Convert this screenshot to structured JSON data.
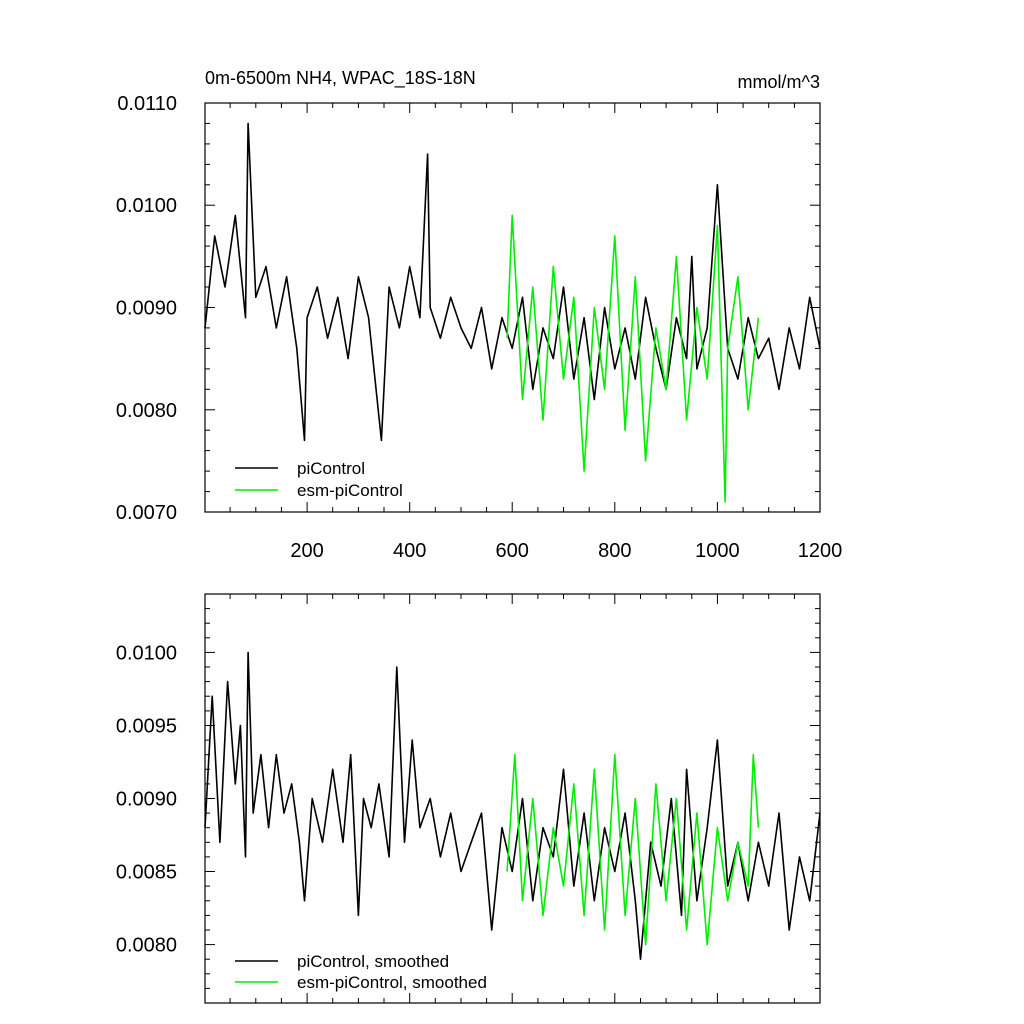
{
  "chart_data": [
    {
      "type": "line",
      "title": "0m-6500m NH4, WPAC_18S-18N",
      "units": "mmol/m^3",
      "xlim": [
        1,
        1200
      ],
      "ylim": [
        0.007,
        0.011
      ],
      "xticks": [
        200,
        400,
        600,
        800,
        1000,
        1200
      ],
      "xtick_labels": [
        "200",
        "400",
        "600",
        "800",
        "1000",
        "1200"
      ],
      "yticks": [
        0.007,
        0.008,
        0.009,
        0.01,
        0.011
      ],
      "ytick_labels": [
        "0.0070",
        "0.0080",
        "0.0090",
        "0.0100",
        "0.0110"
      ],
      "legend_position": "bottom-left",
      "series": [
        {
          "name": "piControl",
          "color": "#000000",
          "x": [
            1,
            20,
            40,
            60,
            80,
            85,
            100,
            120,
            140,
            160,
            180,
            195,
            200,
            220,
            240,
            260,
            280,
            300,
            320,
            345,
            360,
            380,
            400,
            420,
            435,
            440,
            460,
            480,
            500,
            520,
            540,
            560,
            580,
            600,
            620,
            640,
            660,
            680,
            700,
            720,
            740,
            760,
            780,
            800,
            820,
            840,
            860,
            880,
            900,
            920,
            940,
            950,
            960,
            980,
            1000,
            1020,
            1040,
            1060,
            1080,
            1100,
            1120,
            1140,
            1160,
            1180,
            1200
          ],
          "y": [
            0.0088,
            0.0097,
            0.0092,
            0.0099,
            0.0089,
            0.0108,
            0.0091,
            0.0094,
            0.0088,
            0.0093,
            0.0086,
            0.0077,
            0.0089,
            0.0092,
            0.0087,
            0.0091,
            0.0085,
            0.0093,
            0.0089,
            0.0077,
            0.0092,
            0.0088,
            0.0094,
            0.0089,
            0.0105,
            0.009,
            0.0087,
            0.0091,
            0.0088,
            0.0086,
            0.009,
            0.0084,
            0.0089,
            0.0086,
            0.0091,
            0.0082,
            0.0088,
            0.0085,
            0.0092,
            0.0083,
            0.0089,
            0.0081,
            0.009,
            0.0084,
            0.0088,
            0.0083,
            0.0091,
            0.0086,
            0.0082,
            0.0089,
            0.0085,
            0.0095,
            0.0084,
            0.0088,
            0.0102,
            0.0086,
            0.0083,
            0.0089,
            0.0085,
            0.0087,
            0.0082,
            0.0088,
            0.0084,
            0.0091,
            0.0086
          ]
        },
        {
          "name": "esm-piControl",
          "color": "#00ee00",
          "x": [
            590,
            600,
            620,
            640,
            660,
            680,
            700,
            720,
            740,
            760,
            780,
            800,
            820,
            840,
            860,
            880,
            900,
            920,
            940,
            960,
            980,
            1000,
            1015,
            1020,
            1040,
            1060,
            1080
          ],
          "y": [
            0.0087,
            0.0099,
            0.0081,
            0.0092,
            0.0079,
            0.0094,
            0.0083,
            0.0091,
            0.0074,
            0.009,
            0.0082,
            0.0097,
            0.0078,
            0.0093,
            0.0075,
            0.0088,
            0.0082,
            0.0095,
            0.0079,
            0.009,
            0.0083,
            0.0098,
            0.0071,
            0.0086,
            0.0093,
            0.008,
            0.0089
          ]
        }
      ]
    },
    {
      "type": "line",
      "xlim": [
        1,
        1200
      ],
      "ylim": [
        0.0076,
        0.0104
      ],
      "xticks": [
        200,
        400,
        600,
        800,
        1000,
        1200
      ],
      "yticks": [
        0.008,
        0.0085,
        0.009,
        0.0095,
        0.01
      ],
      "ytick_labels": [
        "0.0080",
        "0.0085",
        "0.0090",
        "0.0095",
        "0.0100"
      ],
      "legend_position": "bottom-left",
      "series": [
        {
          "name": "piControl, smoothed",
          "color": "#000000",
          "x": [
            1,
            15,
            30,
            45,
            60,
            70,
            80,
            85,
            95,
            110,
            125,
            140,
            155,
            170,
            185,
            195,
            210,
            230,
            250,
            270,
            285,
            300,
            310,
            325,
            340,
            360,
            375,
            390,
            405,
            420,
            440,
            460,
            480,
            500,
            520,
            540,
            560,
            580,
            600,
            620,
            640,
            660,
            680,
            700,
            720,
            740,
            760,
            780,
            800,
            820,
            840,
            850,
            870,
            890,
            910,
            930,
            940,
            960,
            980,
            1000,
            1020,
            1040,
            1060,
            1080,
            1100,
            1120,
            1140,
            1160,
            1180,
            1200
          ],
          "y": [
            0.0088,
            0.0097,
            0.0087,
            0.0098,
            0.0091,
            0.0095,
            0.0086,
            0.01,
            0.0089,
            0.0093,
            0.0088,
            0.0093,
            0.0089,
            0.0091,
            0.0087,
            0.0083,
            0.009,
            0.0087,
            0.0092,
            0.0087,
            0.0093,
            0.0082,
            0.009,
            0.0088,
            0.0091,
            0.0086,
            0.0099,
            0.0087,
            0.0094,
            0.0088,
            0.009,
            0.0086,
            0.0089,
            0.0085,
            0.0087,
            0.0089,
            0.0081,
            0.0088,
            0.0085,
            0.009,
            0.0083,
            0.0088,
            0.0086,
            0.0092,
            0.0084,
            0.0089,
            0.0083,
            0.0088,
            0.0085,
            0.0089,
            0.0083,
            0.0079,
            0.0087,
            0.0084,
            0.009,
            0.0082,
            0.0092,
            0.0083,
            0.0088,
            0.0094,
            0.0084,
            0.0087,
            0.0083,
            0.0087,
            0.0084,
            0.0089,
            0.0081,
            0.0086,
            0.0083,
            0.0089
          ]
        },
        {
          "name": "esm-piControl, smoothed",
          "color": "#00ee00",
          "x": [
            590,
            605,
            620,
            640,
            660,
            680,
            700,
            720,
            740,
            760,
            780,
            800,
            820,
            840,
            860,
            880,
            900,
            920,
            940,
            960,
            980,
            1000,
            1020,
            1040,
            1060,
            1070,
            1080
          ],
          "y": [
            0.0085,
            0.0093,
            0.0083,
            0.009,
            0.0082,
            0.0088,
            0.0084,
            0.0091,
            0.0082,
            0.0092,
            0.0081,
            0.0093,
            0.0082,
            0.009,
            0.008,
            0.0091,
            0.0083,
            0.009,
            0.0081,
            0.0089,
            0.008,
            0.0088,
            0.0083,
            0.0087,
            0.0084,
            0.0093,
            0.0088
          ]
        }
      ]
    }
  ]
}
